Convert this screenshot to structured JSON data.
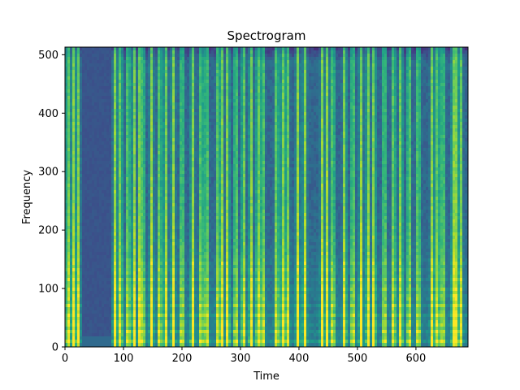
{
  "chart_data": {
    "type": "heatmap",
    "title": "Spectrogram",
    "xlabel": "Time",
    "ylabel": "Frequency",
    "xlim": [
      0,
      689
    ],
    "ylim": [
      0,
      513
    ],
    "x_ticks": [
      0,
      100,
      200,
      300,
      400,
      500,
      600
    ],
    "y_ticks": [
      0,
      100,
      200,
      300,
      400,
      500
    ],
    "colormap": "viridis",
    "silent_spans": [
      [
        28,
        80
      ]
    ],
    "bright_time_frames": [
      5,
      14,
      22,
      86,
      95,
      108,
      118,
      128,
      133,
      148,
      162,
      172,
      185,
      200,
      218,
      233,
      242,
      262,
      268,
      278,
      292,
      305,
      318,
      330,
      338,
      362,
      372,
      380,
      398,
      410,
      440,
      448,
      458,
      478,
      492,
      506,
      518,
      528,
      546,
      562,
      574,
      588,
      604,
      628,
      637,
      646,
      664,
      668,
      676
    ],
    "harmonic_band_frequencies": [
      10,
      25,
      40,
      55,
      70,
      85,
      100,
      115,
      130,
      145
    ]
  }
}
